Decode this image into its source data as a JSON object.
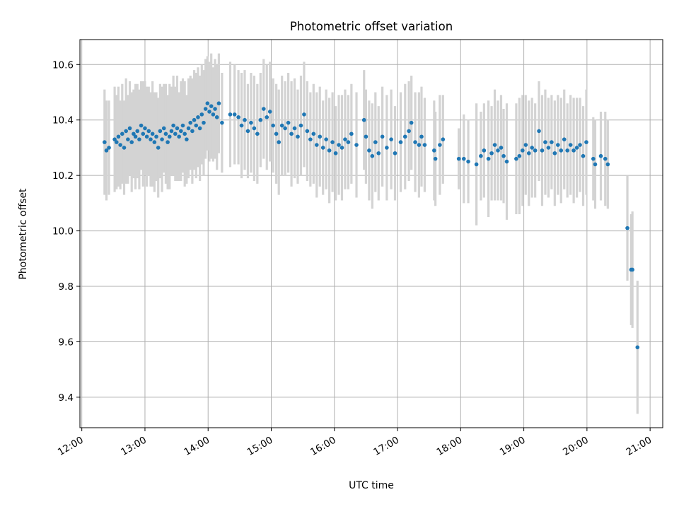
{
  "chart_data": {
    "type": "scatter",
    "title": "Photometric offset variation",
    "xlabel": "UTC time",
    "ylabel": "Photometric offset",
    "x_unit": "hours (UTC)",
    "xlim": [
      11.97,
      21.2
    ],
    "ylim": [
      9.29,
      10.69
    ],
    "x_ticks": [
      {
        "value": 12,
        "label": "12:00"
      },
      {
        "value": 13,
        "label": "13:00"
      },
      {
        "value": 14,
        "label": "14:00"
      },
      {
        "value": 15,
        "label": "15:00"
      },
      {
        "value": 16,
        "label": "16:00"
      },
      {
        "value": 17,
        "label": "17:00"
      },
      {
        "value": 18,
        "label": "18:00"
      },
      {
        "value": 19,
        "label": "19:00"
      },
      {
        "value": 20,
        "label": "20:00"
      },
      {
        "value": 21,
        "label": "21:00"
      }
    ],
    "y_ticks": [
      {
        "value": 9.4,
        "label": "9.4"
      },
      {
        "value": 9.6,
        "label": "9.6"
      },
      {
        "value": 9.8,
        "label": "9.8"
      },
      {
        "value": 10.0,
        "label": "10.0"
      },
      {
        "value": 10.2,
        "label": "10.2"
      },
      {
        "value": 10.4,
        "label": "10.4"
      },
      {
        "value": 10.6,
        "label": "10.6"
      }
    ],
    "grid": true,
    "marker_color": "#1f77b4",
    "errorbar_color": "#d3d3d3",
    "series": [
      {
        "points": [
          [
            12.36,
            10.32,
            0.19
          ],
          [
            12.39,
            10.29,
            0.18
          ],
          [
            12.43,
            10.3,
            0.17
          ],
          [
            12.52,
            10.33,
            0.19
          ],
          [
            12.55,
            10.32,
            0.17
          ],
          [
            12.58,
            10.34,
            0.18
          ],
          [
            12.61,
            10.31,
            0.16
          ],
          [
            12.64,
            10.35,
            0.18
          ],
          [
            12.67,
            10.3,
            0.17
          ],
          [
            12.7,
            10.36,
            0.19
          ],
          [
            12.73,
            10.33,
            0.16
          ],
          [
            12.76,
            10.37,
            0.17
          ],
          [
            12.79,
            10.32,
            0.18
          ],
          [
            12.82,
            10.35,
            0.16
          ],
          [
            12.85,
            10.34,
            0.19
          ],
          [
            12.88,
            10.36,
            0.17
          ],
          [
            12.91,
            10.33,
            0.18
          ],
          [
            12.94,
            10.38,
            0.16
          ],
          [
            12.97,
            10.35,
            0.19
          ],
          [
            13.0,
            10.37,
            0.17
          ],
          [
            13.03,
            10.34,
            0.18
          ],
          [
            13.06,
            10.36,
            0.16
          ],
          [
            13.09,
            10.33,
            0.17
          ],
          [
            13.12,
            10.35,
            0.19
          ],
          [
            13.15,
            10.32,
            0.18
          ],
          [
            13.18,
            10.34,
            0.16
          ],
          [
            13.21,
            10.3,
            0.18
          ],
          [
            13.24,
            10.36,
            0.17
          ],
          [
            13.27,
            10.33,
            0.19
          ],
          [
            13.3,
            10.37,
            0.16
          ],
          [
            13.33,
            10.35,
            0.18
          ],
          [
            13.36,
            10.32,
            0.17
          ],
          [
            13.39,
            10.34,
            0.19
          ],
          [
            13.42,
            10.36,
            0.16
          ],
          [
            13.45,
            10.38,
            0.18
          ],
          [
            13.48,
            10.35,
            0.17
          ],
          [
            13.51,
            10.37,
            0.19
          ],
          [
            13.54,
            10.34,
            0.16
          ],
          [
            13.57,
            10.36,
            0.18
          ],
          [
            13.6,
            10.38,
            0.17
          ],
          [
            13.63,
            10.35,
            0.19
          ],
          [
            13.66,
            10.33,
            0.16
          ],
          [
            13.69,
            10.37,
            0.18
          ],
          [
            13.72,
            10.39,
            0.17
          ],
          [
            13.75,
            10.36,
            0.19
          ],
          [
            13.78,
            10.4,
            0.18
          ],
          [
            13.81,
            10.38,
            0.19
          ],
          [
            13.84,
            10.41,
            0.18
          ],
          [
            13.87,
            10.37,
            0.19
          ],
          [
            13.9,
            10.42,
            0.18
          ],
          [
            13.93,
            10.39,
            0.19
          ],
          [
            13.96,
            10.44,
            0.18
          ],
          [
            13.99,
            10.46,
            0.17
          ],
          [
            14.02,
            10.43,
            0.18
          ],
          [
            14.05,
            10.45,
            0.19
          ],
          [
            14.08,
            10.42,
            0.17
          ],
          [
            14.11,
            10.44,
            0.18
          ],
          [
            14.14,
            10.41,
            0.19
          ],
          [
            14.17,
            10.46,
            0.18
          ],
          [
            14.22,
            10.39,
            0.18
          ],
          [
            14.35,
            10.42,
            0.19
          ],
          [
            14.42,
            10.42,
            0.18
          ],
          [
            14.48,
            10.41,
            0.17
          ],
          [
            14.53,
            10.38,
            0.19
          ],
          [
            14.58,
            10.4,
            0.18
          ],
          [
            14.63,
            10.36,
            0.17
          ],
          [
            14.68,
            10.39,
            0.18
          ],
          [
            14.73,
            10.37,
            0.19
          ],
          [
            14.78,
            10.35,
            0.18
          ],
          [
            14.83,
            10.4,
            0.17
          ],
          [
            14.88,
            10.44,
            0.18
          ],
          [
            14.93,
            10.41,
            0.19
          ],
          [
            14.98,
            10.43,
            0.18
          ],
          [
            15.03,
            10.38,
            0.17
          ],
          [
            15.08,
            10.35,
            0.18
          ],
          [
            15.12,
            10.32,
            0.19
          ],
          [
            15.17,
            10.38,
            0.18
          ],
          [
            15.22,
            10.37,
            0.17
          ],
          [
            15.27,
            10.39,
            0.18
          ],
          [
            15.32,
            10.35,
            0.19
          ],
          [
            15.37,
            10.37,
            0.18
          ],
          [
            15.42,
            10.34,
            0.17
          ],
          [
            15.47,
            10.38,
            0.18
          ],
          [
            15.52,
            10.42,
            0.19
          ],
          [
            15.57,
            10.36,
            0.18
          ],
          [
            15.62,
            10.33,
            0.17
          ],
          [
            15.67,
            10.35,
            0.18
          ],
          [
            15.72,
            10.31,
            0.19
          ],
          [
            15.77,
            10.34,
            0.18
          ],
          [
            15.82,
            10.3,
            0.17
          ],
          [
            15.87,
            10.33,
            0.18
          ],
          [
            15.92,
            10.29,
            0.19
          ],
          [
            15.97,
            10.32,
            0.18
          ],
          [
            16.02,
            10.28,
            0.17
          ],
          [
            16.07,
            10.31,
            0.18
          ],
          [
            16.12,
            10.3,
            0.19
          ],
          [
            16.17,
            10.33,
            0.18
          ],
          [
            16.22,
            10.32,
            0.17
          ],
          [
            16.27,
            10.35,
            0.18
          ],
          [
            16.35,
            10.31,
            0.19
          ],
          [
            16.47,
            10.4,
            0.18
          ],
          [
            16.5,
            10.34,
            0.17
          ],
          [
            16.55,
            10.29,
            0.18
          ],
          [
            16.6,
            10.27,
            0.19
          ],
          [
            16.65,
            10.32,
            0.18
          ],
          [
            16.7,
            10.28,
            0.17
          ],
          [
            16.76,
            10.34,
            0.18
          ],
          [
            16.83,
            10.3,
            0.19
          ],
          [
            16.9,
            10.33,
            0.18
          ],
          [
            16.96,
            10.28,
            0.17
          ],
          [
            17.05,
            10.32,
            0.18
          ],
          [
            17.12,
            10.34,
            0.19
          ],
          [
            17.18,
            10.36,
            0.18
          ],
          [
            17.22,
            10.39,
            0.17
          ],
          [
            17.28,
            10.32,
            0.18
          ],
          [
            17.34,
            10.31,
            0.19
          ],
          [
            17.38,
            10.34,
            0.18
          ],
          [
            17.43,
            10.31,
            0.17
          ],
          [
            17.58,
            10.29,
            0.18
          ],
          [
            17.6,
            10.26,
            0.17
          ],
          [
            17.67,
            10.31,
            0.18
          ],
          [
            17.72,
            10.33,
            0.16
          ],
          [
            17.97,
            10.26,
            0.11
          ],
          [
            18.05,
            10.26,
            0.16
          ],
          [
            18.12,
            10.25,
            0.15
          ],
          [
            18.25,
            10.24,
            0.22
          ],
          [
            18.32,
            10.27,
            0.16
          ],
          [
            18.37,
            10.29,
            0.17
          ],
          [
            18.44,
            10.26,
            0.21
          ],
          [
            18.49,
            10.28,
            0.17
          ],
          [
            18.54,
            10.31,
            0.2
          ],
          [
            18.59,
            10.29,
            0.18
          ],
          [
            18.64,
            10.3,
            0.19
          ],
          [
            18.68,
            10.27,
            0.17
          ],
          [
            18.73,
            10.25,
            0.21
          ],
          [
            18.88,
            10.26,
            0.2
          ],
          [
            18.93,
            10.27,
            0.21
          ],
          [
            18.98,
            10.29,
            0.2
          ],
          [
            19.03,
            10.31,
            0.18
          ],
          [
            19.08,
            10.28,
            0.19
          ],
          [
            19.13,
            10.3,
            0.18
          ],
          [
            19.18,
            10.29,
            0.17
          ],
          [
            19.24,
            10.36,
            0.18
          ],
          [
            19.29,
            10.29,
            0.2
          ],
          [
            19.34,
            10.32,
            0.19
          ],
          [
            19.39,
            10.3,
            0.18
          ],
          [
            19.44,
            10.32,
            0.17
          ],
          [
            19.49,
            10.28,
            0.19
          ],
          [
            19.54,
            10.31,
            0.18
          ],
          [
            19.59,
            10.29,
            0.19
          ],
          [
            19.64,
            10.33,
            0.18
          ],
          [
            19.69,
            10.29,
            0.17
          ],
          [
            19.74,
            10.31,
            0.18
          ],
          [
            19.79,
            10.29,
            0.19
          ],
          [
            19.84,
            10.3,
            0.18
          ],
          [
            19.89,
            10.31,
            0.17
          ],
          [
            19.94,
            10.27,
            0.18
          ],
          [
            19.99,
            10.32,
            0.19
          ],
          [
            20.1,
            10.26,
            0.15
          ],
          [
            20.13,
            10.24,
            0.16
          ],
          [
            20.22,
            10.27,
            0.16
          ],
          [
            20.29,
            10.26,
            0.17
          ],
          [
            20.33,
            10.24,
            0.16
          ],
          [
            20.64,
            10.01,
            0.19
          ],
          [
            20.7,
            9.86,
            0.2
          ],
          [
            20.72,
            9.86,
            0.21
          ],
          [
            20.8,
            9.58,
            0.24
          ]
        ]
      }
    ]
  }
}
